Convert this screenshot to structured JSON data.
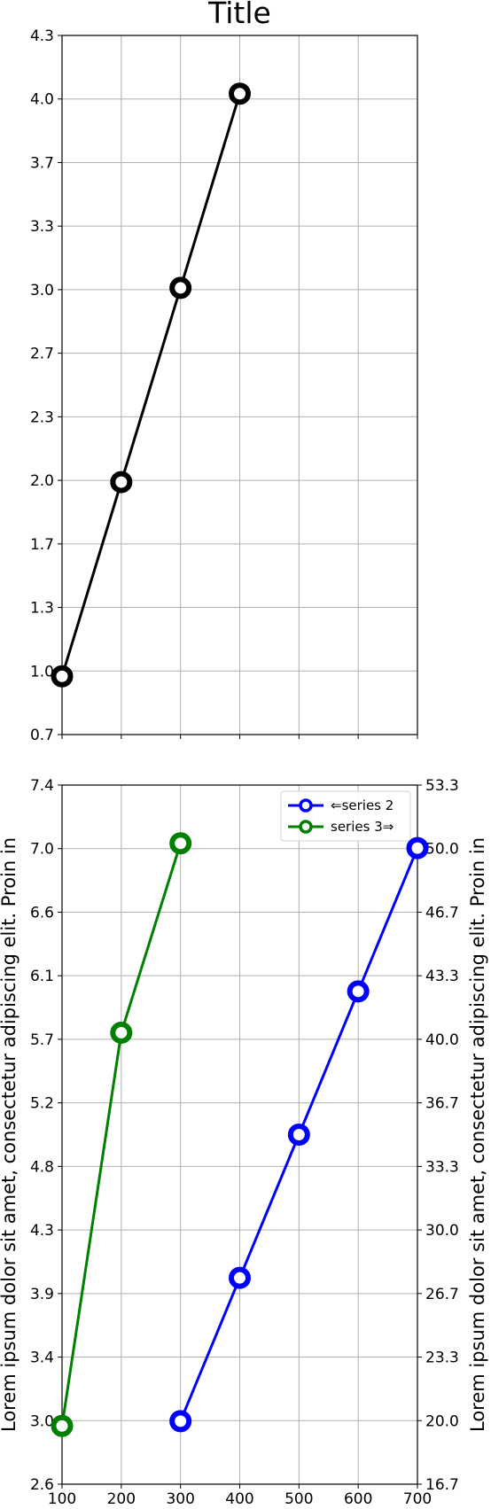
{
  "chart_data": [
    {
      "type": "line",
      "title": "Title",
      "x": [
        100,
        200,
        300,
        400
      ],
      "xlim": [
        100,
        700
      ],
      "xticks": [
        100,
        200,
        300,
        400,
        500,
        600,
        700
      ],
      "ylim": [
        0.7,
        4.3
      ],
      "yticks": [
        "0.7",
        "1.0",
        "1.3",
        "1.7",
        "2.0",
        "2.3",
        "2.7",
        "3.0",
        "3.3",
        "3.7",
        "4.0",
        "4.3"
      ],
      "grid": true,
      "series": [
        {
          "values": [
            1,
            2,
            3,
            4
          ],
          "color": "#000000",
          "marker": "hollow-circle"
        }
      ]
    },
    {
      "type": "line",
      "xlim": [
        100,
        700
      ],
      "xticks": [
        "100",
        "200",
        "300",
        "400",
        "500",
        "600",
        "700"
      ],
      "grid": true,
      "legend": "top-right",
      "left_axis": {
        "label": "Lorem ipsum dolor sit amet, consectetur adipiscing elit. Proin in",
        "ylim": [
          2.6,
          7.4
        ],
        "yticks": [
          "2.6",
          "3.0",
          "3.4",
          "3.9",
          "4.3",
          "4.8",
          "5.2",
          "5.7",
          "6.1",
          "6.6",
          "7.0",
          "7.4"
        ]
      },
      "right_axis": {
        "label": "Lorem ipsum dolor sit amet, consectetur adipiscing elit. Proin in",
        "ylim": [
          16.7,
          53.3
        ],
        "yticks": [
          "16.7",
          "20.0",
          "23.3",
          "26.7",
          "30.0",
          "33.3",
          "36.7",
          "40.0",
          "43.3",
          "46.7",
          "50.0",
          "53.3"
        ]
      },
      "series": [
        {
          "name": "⇐series 2",
          "axis": "right",
          "x": [
            300,
            400,
            500,
            600,
            700
          ],
          "values": [
            20,
            27.5,
            35,
            42.5,
            50
          ],
          "color": "#0000ff",
          "marker": "hollow-circle"
        },
        {
          "name": "series 3⇒",
          "axis": "left",
          "x": [
            100,
            200,
            300
          ],
          "values": [
            3.0,
            5.7,
            7.0
          ],
          "color": "#008000",
          "marker": "hollow-circle"
        }
      ]
    }
  ]
}
